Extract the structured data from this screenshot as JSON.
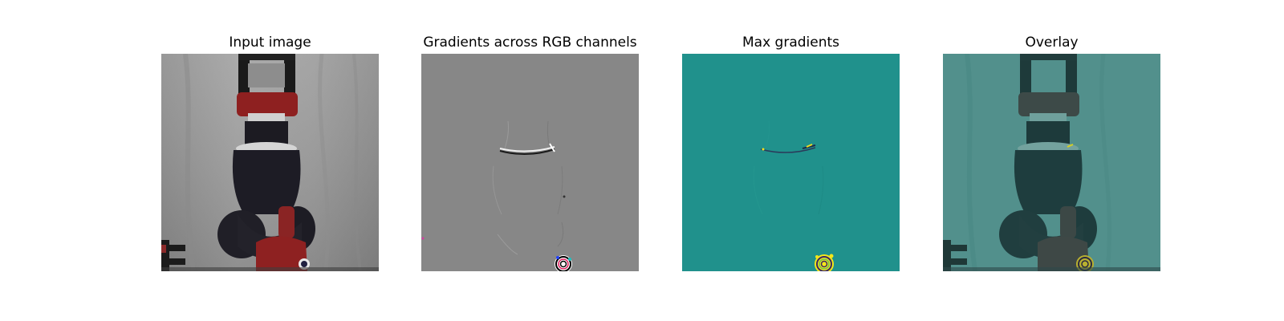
{
  "panels": [
    {
      "title": "Input image"
    },
    {
      "title": "Gradients across RGB channels"
    },
    {
      "title": "Max gradients"
    },
    {
      "title": "Overlay"
    }
  ],
  "colors": {
    "background": "#ffffff",
    "gradient_gray": "#878787",
    "max_gradient_teal": "#20918c",
    "overlay_teal": "#4b8a86",
    "gripper_red": "#8e2020",
    "robot_black": "#1b1a22",
    "cloth_gray": "#a0a0a0"
  }
}
